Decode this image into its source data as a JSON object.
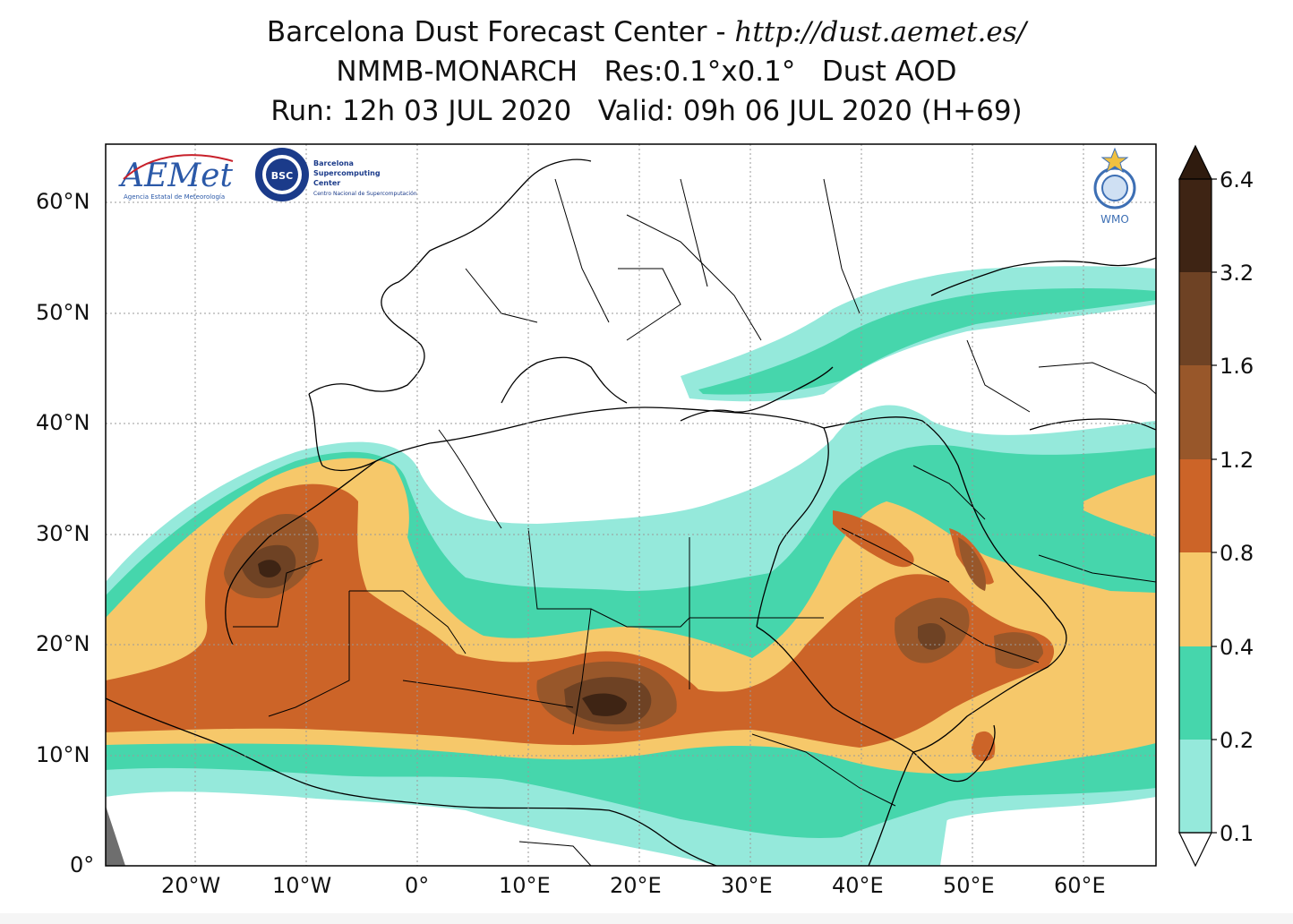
{
  "title": {
    "line1_prefix": "Barcelona Dust Forecast Center - ",
    "line1_url": "http://dust.aemet.es/",
    "line2": "NMMB-MONARCH   Res:0.1°x0.1°   Dust AOD",
    "line3": "Run: 12h 03 JUL 2020   Valid: 09h 06 JUL 2020 (H+69)"
  },
  "axes": {
    "lon_labels": [
      "20°W",
      "10°W",
      "0°",
      "10°E",
      "20°E",
      "30°E",
      "40°E",
      "50°E",
      "60°E"
    ],
    "lat_labels": [
      "60°N",
      "50°N",
      "40°N",
      "30°N",
      "20°N",
      "10°N",
      "0°"
    ]
  },
  "colorbar": {
    "labels": [
      "6.4",
      "3.2",
      "1.6",
      "1.2",
      "0.8",
      "0.4",
      "0.2",
      "0.1"
    ],
    "colors": [
      "#3e2414",
      "#6e4224",
      "#98572a",
      "#cc6428",
      "#f6c86a",
      "#46d6ac",
      "#95e9db"
    ],
    "over_color": "#2f1b0e",
    "under_color": "#ffffff"
  },
  "logos": {
    "aemet": "AEMet",
    "aemet_sub": "Agencia Estatal de Meteorología",
    "bsc": "BSC",
    "bsc_text": [
      "Barcelona",
      "Supercomputing",
      "Center"
    ],
    "bsc_sub": "Centro Nacional de Supercomputación",
    "wmo": "WMO"
  }
}
